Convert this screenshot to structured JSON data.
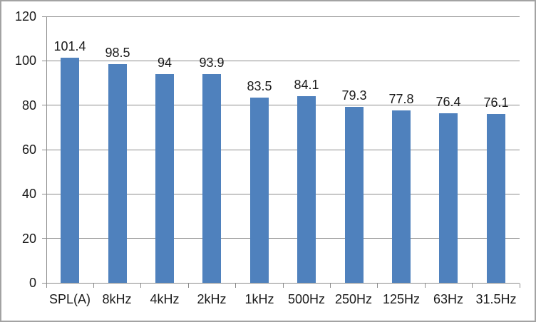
{
  "chart_data": {
    "type": "bar",
    "title": "",
    "xlabel": "",
    "ylabel": "",
    "categories": [
      "SPL(A)",
      "8kHz",
      "4kHz",
      "2kHz",
      "1kHz",
      "500Hz",
      "250Hz",
      "125Hz",
      "63Hz",
      "31.5Hz"
    ],
    "values": [
      101.4,
      98.5,
      94,
      93.9,
      83.5,
      84.1,
      79.3,
      77.8,
      76.4,
      76.1
    ],
    "data_labels": [
      "101.4",
      "98.5",
      "94",
      "93.9",
      "83.5",
      "84.1",
      "79.3",
      "77.8",
      "76.4",
      "76.1"
    ],
    "ylim": [
      0,
      120
    ],
    "ytick_step": 20,
    "ytick_labels": [
      "0",
      "20",
      "40",
      "60",
      "80",
      "100",
      "120"
    ],
    "grid": true,
    "legend": false,
    "colors": {
      "bar_fill": "#4f81bd",
      "gridline": "#8c8c8c",
      "axis": "#8c8c8c",
      "text": "#1a1a1a",
      "frame_border": "#a3a3a3",
      "background": "#ffffff"
    }
  }
}
